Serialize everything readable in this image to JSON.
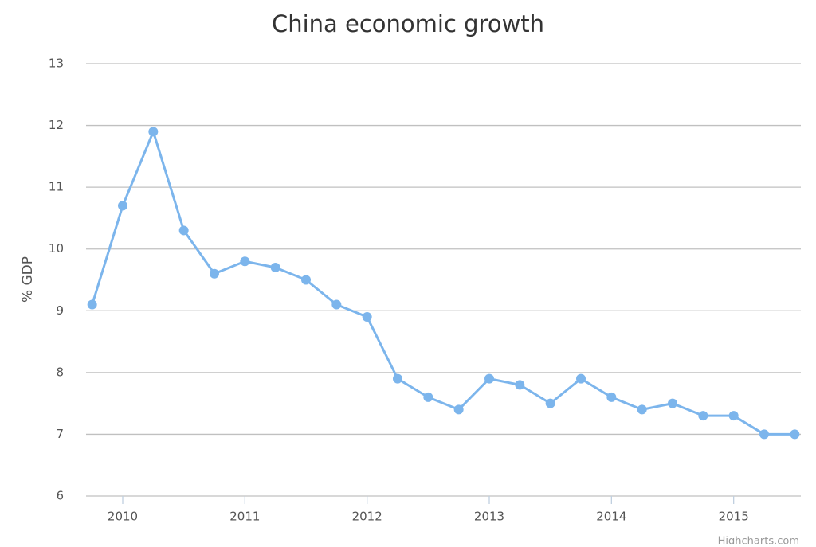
{
  "chart_data": {
    "type": "line",
    "title": "China economic growth",
    "y_label": "% GDP",
    "credit": "Highcharts.com",
    "x": [
      2009.75,
      2010,
      2010.25,
      2010.5,
      2010.75,
      2011,
      2011.25,
      2011.5,
      2011.75,
      2012,
      2012.25,
      2012.5,
      2012.75,
      2013,
      2013.25,
      2013.5,
      2013.75,
      2014,
      2014.25,
      2014.5,
      2014.75,
      2015,
      2015.25,
      2015.5
    ],
    "series": [
      {
        "color": "#7cb5ec",
        "values": [
          9.1,
          10.7,
          11.9,
          10.3,
          9.6,
          9.8,
          9.7,
          9.5,
          9.1,
          8.9,
          7.9,
          7.6,
          7.4,
          7.9,
          7.8,
          7.5,
          7.9,
          7.6,
          7.4,
          7.5,
          7.3,
          7.3,
          7.0,
          7.0
        ]
      }
    ],
    "xlim": [
      2009.7,
      2015.55
    ],
    "xticks": [
      2010,
      2011,
      2012,
      2013,
      2014,
      2015
    ],
    "ylim": [
      6,
      13
    ],
    "yticks": [
      6,
      7,
      8,
      9,
      10,
      11,
      12,
      13
    ],
    "grid": true
  }
}
